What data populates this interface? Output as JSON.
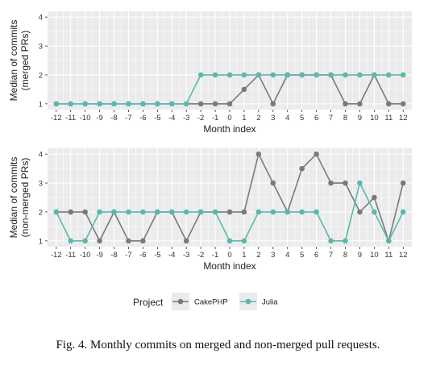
{
  "chart_data": [
    {
      "type": "line",
      "ylabel": "Median of commits\n(merged PRs)",
      "xlabel": "Month index",
      "x": [
        -12,
        -11,
        -10,
        -9,
        -8,
        -7,
        -6,
        -5,
        -4,
        -3,
        -2,
        -1,
        0,
        1,
        2,
        3,
        4,
        5,
        6,
        7,
        8,
        9,
        10,
        11,
        12
      ],
      "ylim": [
        0.8,
        4.2
      ],
      "yticks": [
        1,
        2,
        3,
        4
      ],
      "grid": true,
      "series": [
        {
          "name": "CakePHP",
          "values": [
            1,
            1,
            1,
            1,
            1,
            1,
            1,
            1,
            1,
            1,
            1,
            1,
            1,
            1.5,
            2,
            1,
            2,
            2,
            2,
            2,
            1,
            1,
            2,
            1,
            1
          ]
        },
        {
          "name": "Julia",
          "values": [
            1,
            1,
            1,
            1,
            1,
            1,
            1,
            1,
            1,
            1,
            2,
            2,
            2,
            2,
            2,
            2,
            2,
            2,
            2,
            2,
            2,
            2,
            2,
            2,
            2
          ]
        }
      ]
    },
    {
      "type": "line",
      "ylabel": "Median of commits\n(non-merged PRs)",
      "xlabel": "Month index",
      "x": [
        -12,
        -11,
        -10,
        -9,
        -8,
        -7,
        -6,
        -5,
        -4,
        -3,
        -2,
        -1,
        0,
        1,
        2,
        3,
        4,
        5,
        6,
        7,
        8,
        9,
        10,
        11,
        12
      ],
      "ylim": [
        0.8,
        4.2
      ],
      "yticks": [
        1,
        2,
        3,
        4
      ],
      "grid": true,
      "series": [
        {
          "name": "CakePHP",
          "values": [
            2,
            2,
            2,
            1,
            2,
            1,
            1,
            2,
            2,
            1,
            2,
            2,
            2,
            2,
            4,
            3,
            2,
            3.5,
            4,
            3,
            3,
            2,
            2.5,
            1,
            3
          ]
        },
        {
          "name": "Julia",
          "values": [
            2,
            1,
            1,
            2,
            2,
            2,
            2,
            2,
            2,
            2,
            2,
            2,
            1,
            1,
            2,
            2,
            2,
            2,
            2,
            1,
            1,
            3,
            2,
            1,
            2
          ]
        }
      ]
    }
  ],
  "legend": {
    "title": "Project",
    "position": "bottom",
    "items": [
      {
        "label": "CakePHP",
        "color": "#7a7a7a"
      },
      {
        "label": "Julia",
        "color": "#5bb8ad"
      }
    ]
  },
  "colors": {
    "panel": "#ebebeb",
    "grid": "#ffffff",
    "cakephp": "#7a7a7a",
    "julia": "#5bb8ad"
  },
  "caption": "Fig. 4.  Monthly commits on merged and non-merged pull requests."
}
